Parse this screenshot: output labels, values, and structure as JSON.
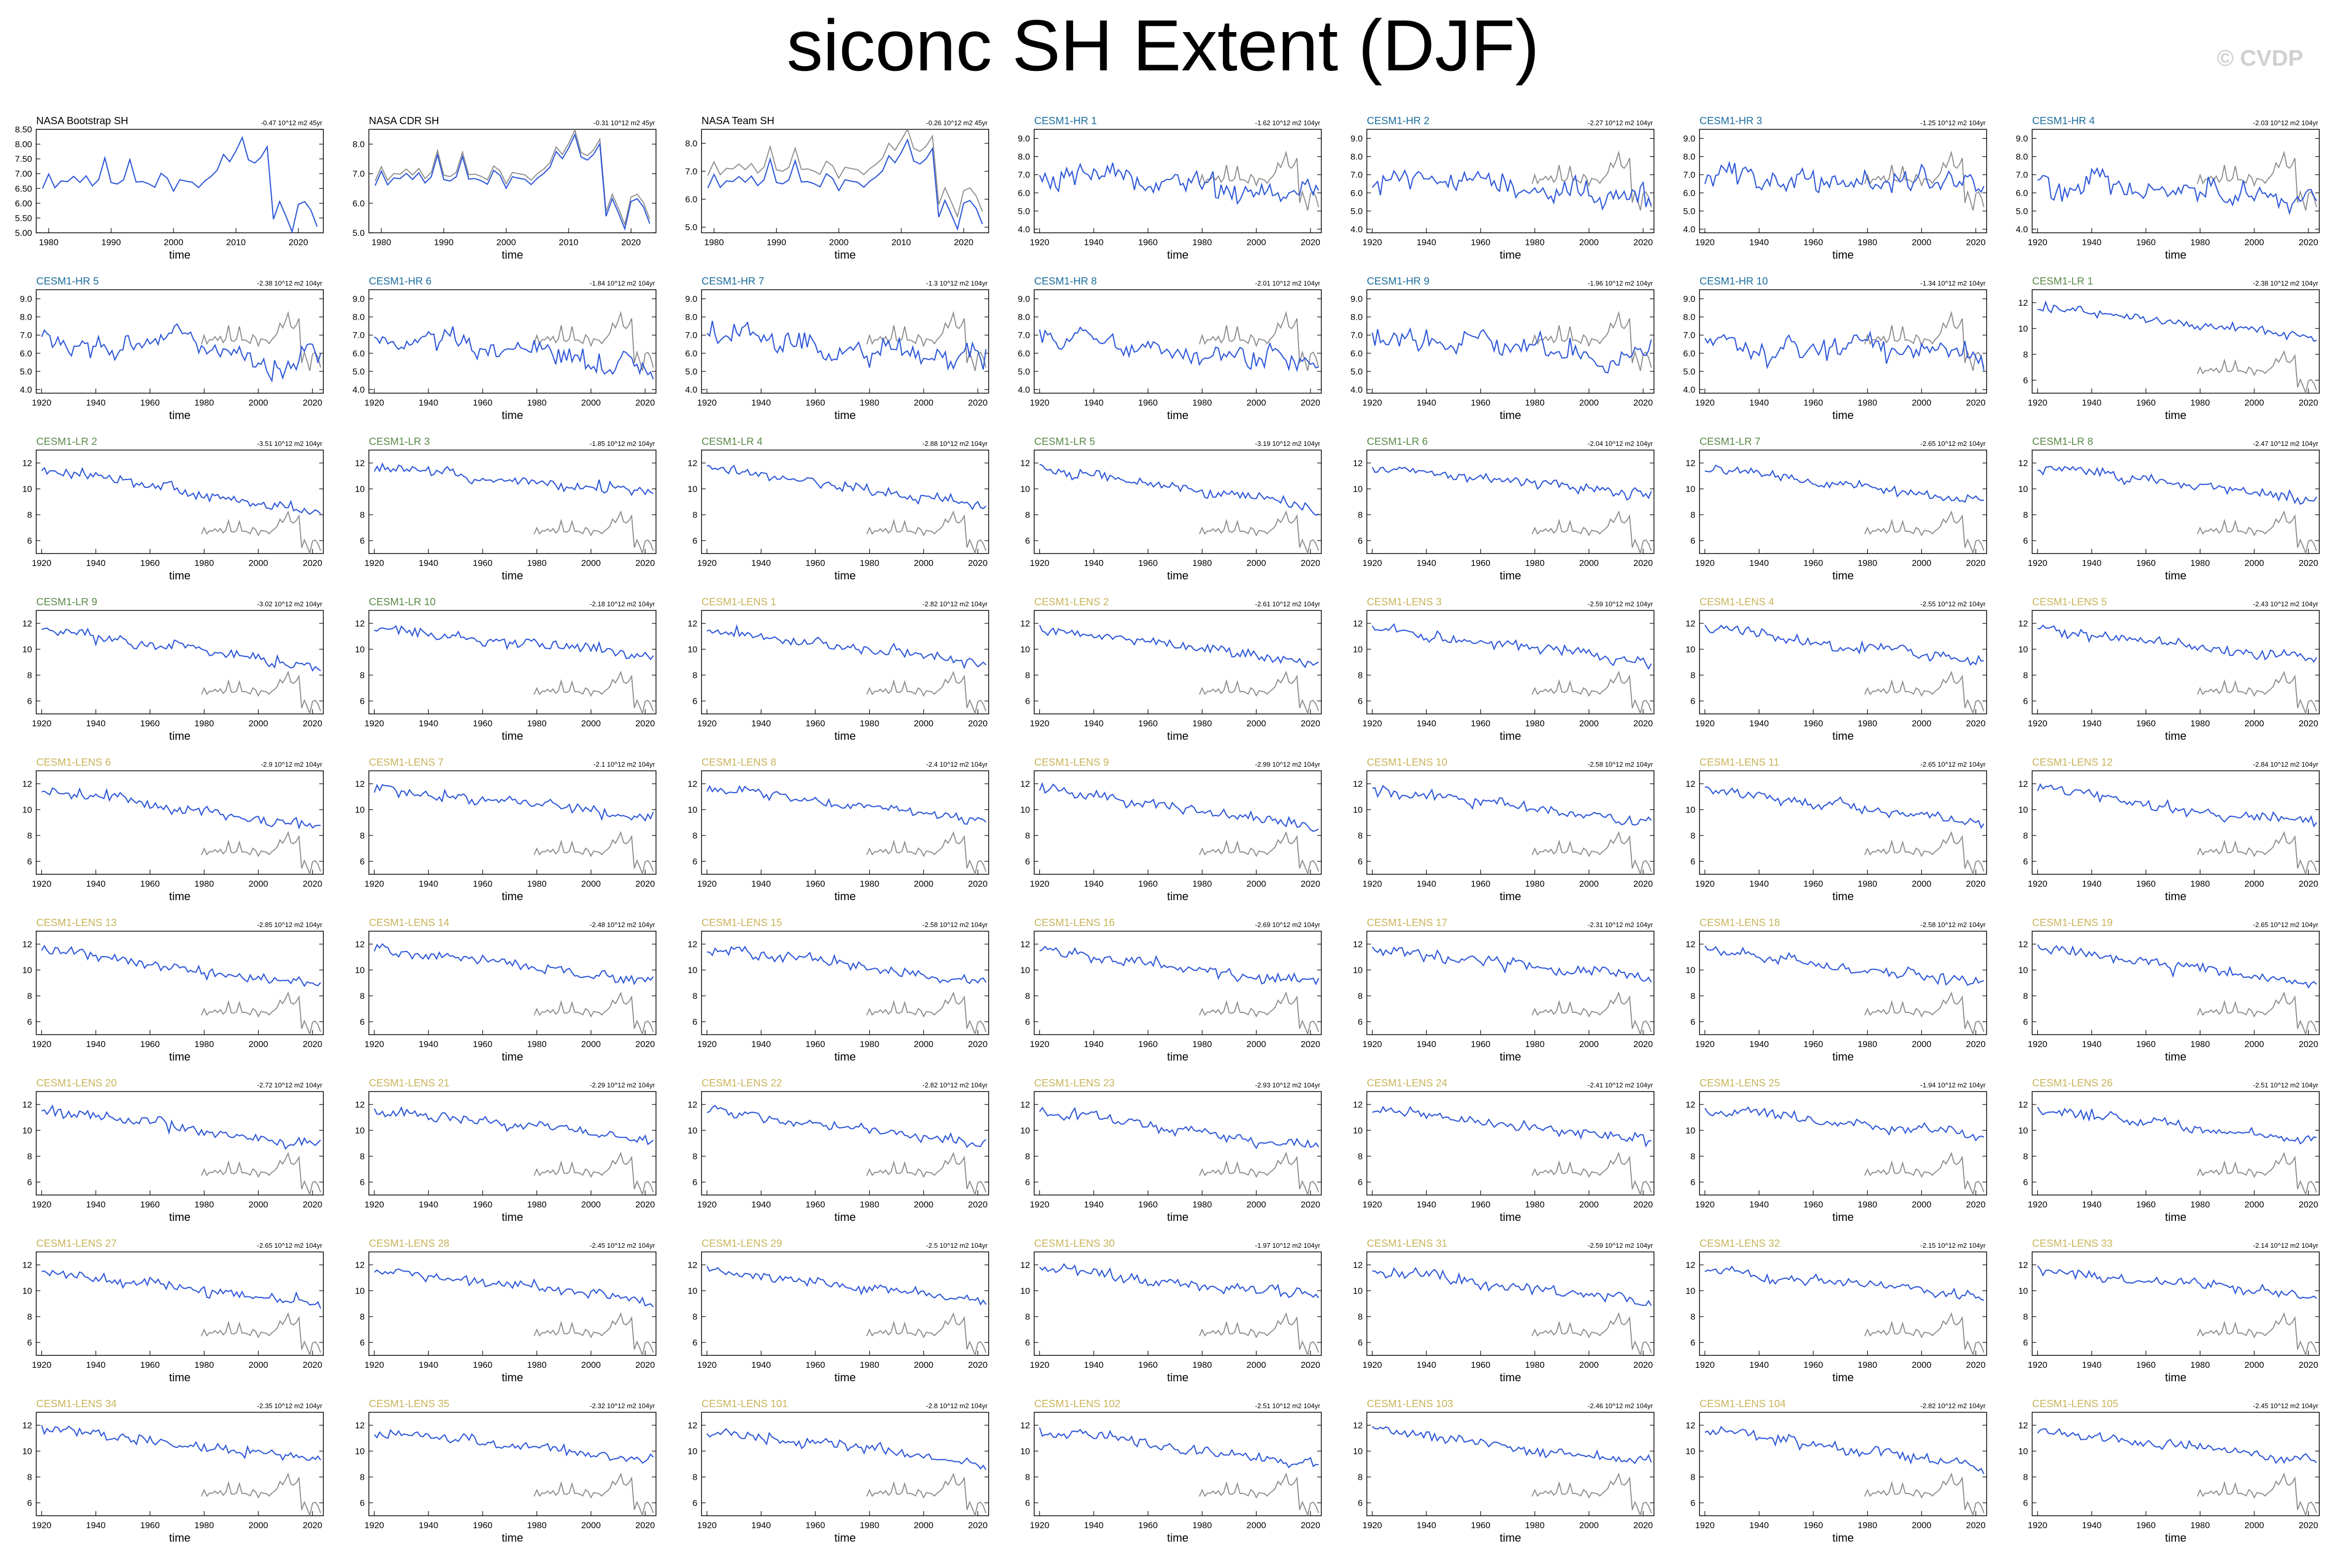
{
  "title": "siconc SH Extent (DJF)",
  "watermark": "© CVDP",
  "colors": {
    "model_line": "#2c56d8",
    "obs_line": "#8c8c8c",
    "obs_title": "#000000",
    "hr_title": "#1c6e9e",
    "lr_title": "#5a8a4a",
    "lens_title": "#c9b45a"
  },
  "chart_data": {
    "type": "line",
    "layout": "7 columns x 9 rows panel grid",
    "x_label": "time",
    "trend_units": "10^12 m2",
    "observations": [
      {
        "name": "NASA Bootstrap SH",
        "trend": "-0.47 10^12 m2 45yr",
        "xlim": [
          1978,
          2024
        ],
        "x_ticks": [
          1980,
          1990,
          2000,
          2010,
          2020
        ],
        "ylim": [
          5.0,
          8.5
        ],
        "y_ticks": [
          "8.50",
          "8.00",
          "7.50",
          "7.00",
          "6.50",
          "6.00",
          "5.50",
          "5.00"
        ]
      },
      {
        "name": "NASA CDR SH",
        "trend": "-0.31 10^12 m2 45yr",
        "xlim": [
          1978,
          2024
        ],
        "x_ticks": [
          1980,
          1990,
          2000,
          2010,
          2020
        ],
        "ylim": [
          5.0,
          8.5
        ],
        "y_ticks": [
          "8.0",
          "7.0",
          "6.0",
          "5.0"
        ]
      },
      {
        "name": "NASA Team SH",
        "trend": "-0.26 10^12 m2 45yr",
        "xlim": [
          1978,
          2024
        ],
        "x_ticks": [
          1980,
          1990,
          2000,
          2010,
          2020
        ],
        "ylim": [
          4.8,
          8.5
        ],
        "y_ticks": [
          "8.0",
          "7.0",
          "6.0",
          "5.0"
        ]
      }
    ],
    "models": [
      {
        "name": "CESM1-HR 1",
        "group": "hr",
        "trend": "-1.62 10^12 m2 104yr"
      },
      {
        "name": "CESM1-HR 2",
        "group": "hr",
        "trend": "-2.27 10^12 m2 104yr"
      },
      {
        "name": "CESM1-HR 3",
        "group": "hr",
        "trend": "-1.25 10^12 m2 104yr"
      },
      {
        "name": "CESM1-HR 4",
        "group": "hr",
        "trend": "-2.03 10^12 m2 104yr"
      },
      {
        "name": "CESM1-HR 5",
        "group": "hr",
        "trend": "-2.38 10^12 m2 104yr"
      },
      {
        "name": "CESM1-HR 6",
        "group": "hr",
        "trend": "-1.84 10^12 m2 104yr"
      },
      {
        "name": "CESM1-HR 7",
        "group": "hr",
        "trend": "-1.3 10^12 m2 104yr"
      },
      {
        "name": "CESM1-HR 8",
        "group": "hr",
        "trend": "-2.01 10^12 m2 104yr"
      },
      {
        "name": "CESM1-HR 9",
        "group": "hr",
        "trend": "-1.96 10^12 m2 104yr"
      },
      {
        "name": "CESM1-HR 10",
        "group": "hr",
        "trend": "-1.34 10^12 m2 104yr"
      },
      {
        "name": "CESM1-LR 1",
        "group": "lr",
        "trend": "-2.38 10^12 m2 104yr"
      },
      {
        "name": "CESM1-LR 2",
        "group": "lr",
        "trend": "-3.51 10^12 m2 104yr"
      },
      {
        "name": "CESM1-LR 3",
        "group": "lr",
        "trend": "-1.85 10^12 m2 104yr"
      },
      {
        "name": "CESM1-LR 4",
        "group": "lr",
        "trend": "-2.88 10^12 m2 104yr"
      },
      {
        "name": "CESM1-LR 5",
        "group": "lr",
        "trend": "-3.19 10^12 m2 104yr"
      },
      {
        "name": "CESM1-LR 6",
        "group": "lr",
        "trend": "-2.04 10^12 m2 104yr"
      },
      {
        "name": "CESM1-LR 7",
        "group": "lr",
        "trend": "-2.65 10^12 m2 104yr"
      },
      {
        "name": "CESM1-LR 8",
        "group": "lr",
        "trend": "-2.47 10^12 m2 104yr"
      },
      {
        "name": "CESM1-LR 9",
        "group": "lr",
        "trend": "-3.02 10^12 m2 104yr"
      },
      {
        "name": "CESM1-LR 10",
        "group": "lr",
        "trend": "-2.18 10^12 m2 104yr"
      },
      {
        "name": "CESM1-LENS 1",
        "group": "lens",
        "trend": "-2.82 10^12 m2 104yr"
      },
      {
        "name": "CESM1-LENS 2",
        "group": "lens",
        "trend": "-2.61 10^12 m2 104yr"
      },
      {
        "name": "CESM1-LENS 3",
        "group": "lens",
        "trend": "-2.59 10^12 m2 104yr"
      },
      {
        "name": "CESM1-LENS 4",
        "group": "lens",
        "trend": "-2.55 10^12 m2 104yr"
      },
      {
        "name": "CESM1-LENS 5",
        "group": "lens",
        "trend": "-2.43 10^12 m2 104yr"
      },
      {
        "name": "CESM1-LENS 6",
        "group": "lens",
        "trend": "-2.9 10^12 m2 104yr"
      },
      {
        "name": "CESM1-LENS 7",
        "group": "lens",
        "trend": "-2.1 10^12 m2 104yr"
      },
      {
        "name": "CESM1-LENS 8",
        "group": "lens",
        "trend": "-2.4 10^12 m2 104yr"
      },
      {
        "name": "CESM1-LENS 9",
        "group": "lens",
        "trend": "-2.99 10^12 m2 104yr"
      },
      {
        "name": "CESM1-LENS 10",
        "group": "lens",
        "trend": "-2.58 10^12 m2 104yr"
      },
      {
        "name": "CESM1-LENS 11",
        "group": "lens",
        "trend": "-2.65 10^12 m2 104yr"
      },
      {
        "name": "CESM1-LENS 12",
        "group": "lens",
        "trend": "-2.84 10^12 m2 104yr"
      },
      {
        "name": "CESM1-LENS 13",
        "group": "lens",
        "trend": "-2.85 10^12 m2 104yr"
      },
      {
        "name": "CESM1-LENS 14",
        "group": "lens",
        "trend": "-2.48 10^12 m2 104yr"
      },
      {
        "name": "CESM1-LENS 15",
        "group": "lens",
        "trend": "-2.58 10^12 m2 104yr"
      },
      {
        "name": "CESM1-LENS 16",
        "group": "lens",
        "trend": "-2.69 10^12 m2 104yr"
      },
      {
        "name": "CESM1-LENS 17",
        "group": "lens",
        "trend": "-2.31 10^12 m2 104yr"
      },
      {
        "name": "CESM1-LENS 18",
        "group": "lens",
        "trend": "-2.58 10^12 m2 104yr"
      },
      {
        "name": "CESM1-LENS 19",
        "group": "lens",
        "trend": "-2.65 10^12 m2 104yr"
      },
      {
        "name": "CESM1-LENS 20",
        "group": "lens",
        "trend": "-2.72 10^12 m2 104yr"
      },
      {
        "name": "CESM1-LENS 21",
        "group": "lens",
        "trend": "-2.29 10^12 m2 104yr"
      },
      {
        "name": "CESM1-LENS 22",
        "group": "lens",
        "trend": "-2.82 10^12 m2 104yr"
      },
      {
        "name": "CESM1-LENS 23",
        "group": "lens",
        "trend": "-2.93 10^12 m2 104yr"
      },
      {
        "name": "CESM1-LENS 24",
        "group": "lens",
        "trend": "-2.41 10^12 m2 104yr"
      },
      {
        "name": "CESM1-LENS 25",
        "group": "lens",
        "trend": "-1.94 10^12 m2 104yr"
      },
      {
        "name": "CESM1-LENS 26",
        "group": "lens",
        "trend": "-2.51 10^12 m2 104yr"
      },
      {
        "name": "CESM1-LENS 27",
        "group": "lens",
        "trend": "-2.65 10^12 m2 104yr"
      },
      {
        "name": "CESM1-LENS 28",
        "group": "lens",
        "trend": "-2.45 10^12 m2 104yr"
      },
      {
        "name": "CESM1-LENS 29",
        "group": "lens",
        "trend": "-2.5 10^12 m2 104yr"
      },
      {
        "name": "CESM1-LENS 30",
        "group": "lens",
        "trend": "-1.97 10^12 m2 104yr"
      },
      {
        "name": "CESM1-LENS 31",
        "group": "lens",
        "trend": "-2.59 10^12 m2 104yr"
      },
      {
        "name": "CESM1-LENS 32",
        "group": "lens",
        "trend": "-2.15 10^12 m2 104yr"
      },
      {
        "name": "CESM1-LENS 33",
        "group": "lens",
        "trend": "-2.14 10^12 m2 104yr"
      },
      {
        "name": "CESM1-LENS 34",
        "group": "lens",
        "trend": "-2.35 10^12 m2 104yr"
      },
      {
        "name": "CESM1-LENS 35",
        "group": "lens",
        "trend": "-2.32 10^12 m2 104yr"
      },
      {
        "name": "CESM1-LENS 101",
        "group": "lens",
        "trend": "-2.8 10^12 m2 104yr"
      },
      {
        "name": "CESM1-LENS 102",
        "group": "lens",
        "trend": "-2.51 10^12 m2 104yr"
      },
      {
        "name": "CESM1-LENS 103",
        "group": "lens",
        "trend": "-2.46 10^12 m2 104yr"
      },
      {
        "name": "CESM1-LENS 104",
        "group": "lens",
        "trend": "-2.82 10^12 m2 104yr"
      },
      {
        "name": "CESM1-LENS 105",
        "group": "lens",
        "trend": "-2.45 10^12 m2 104yr"
      }
    ],
    "model_axes": {
      "xlim": [
        1918,
        2024
      ],
      "x_ticks": [
        1920,
        1940,
        1960,
        1980,
        2000,
        2020
      ],
      "hr": {
        "ylim": [
          3.8,
          9.5
        ],
        "y_ticks": [
          "9.0",
          "8.0",
          "7.0",
          "6.0",
          "5.0",
          "4.0"
        ]
      },
      "lr": {
        "ylim": [
          5.0,
          13.0
        ],
        "y_ticks": [
          "12",
          "10",
          "8",
          "6"
        ]
      },
      "lens": {
        "ylim": [
          5.0,
          13.0
        ],
        "y_ticks": [
          "12",
          "10",
          "8",
          "6"
        ]
      }
    },
    "observed_series_years": [
      1979,
      2023
    ],
    "observed_mean_levels": {
      "bootstrap": 6.9,
      "cdr": 7.0,
      "team": 6.8
    }
  }
}
